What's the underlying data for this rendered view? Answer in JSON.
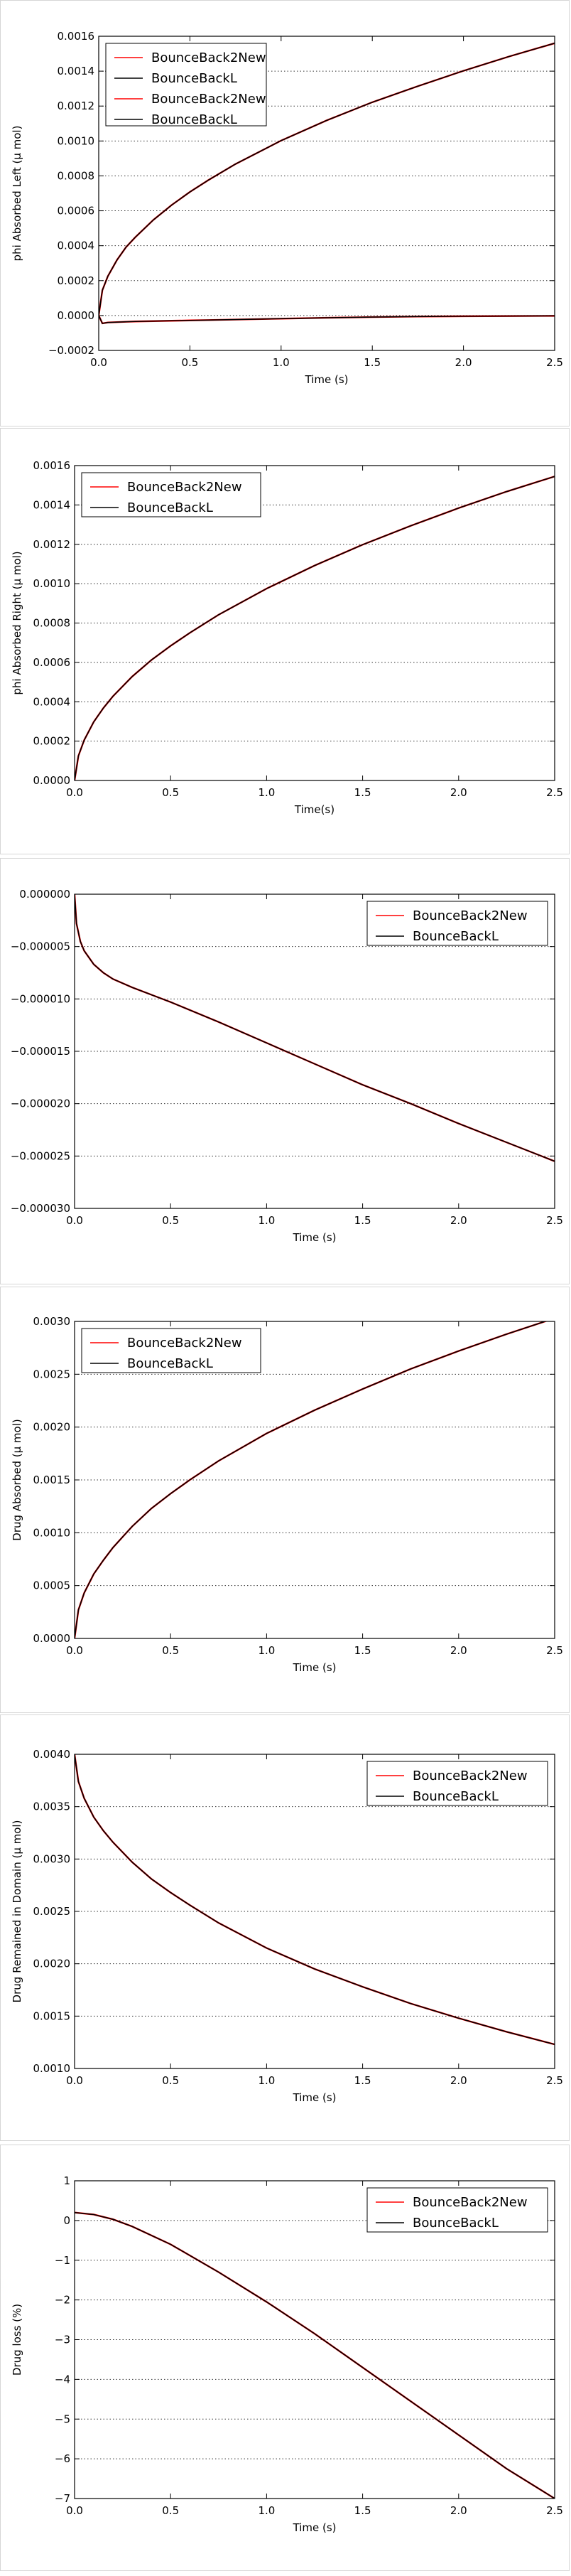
{
  "colors": {
    "new_series": "#ff0000",
    "ref_series": "#000000",
    "grid": "#000000",
    "frame": "#000000"
  },
  "chart_data": [
    {
      "type": "line",
      "ylabel": "phi Absorbed Left (μ mol)",
      "xlabel": "Time (s)",
      "xlim": [
        0,
        2.5
      ],
      "ylim": [
        -0.0002,
        0.0016
      ],
      "xticks": [
        "0.0",
        "0.5",
        "1.0",
        "1.5",
        "2.0",
        "2.5"
      ],
      "yticks": [
        "−0.0002",
        "0.0000",
        "0.0002",
        "0.0004",
        "0.0006",
        "0.0008",
        "0.0010",
        "0.0012",
        "0.0014",
        "0.0016"
      ],
      "grid": "y-dotted",
      "legend_position": "upper-left",
      "x": [
        0,
        0.02,
        0.05,
        0.1,
        0.15,
        0.2,
        0.3,
        0.4,
        0.5,
        0.6,
        0.75,
        1.0,
        1.25,
        1.5,
        1.75,
        2.0,
        2.25,
        2.5
      ],
      "series": [
        {
          "name": "BounceBack2New",
          "values": [
            0,
            0.000145,
            0.000225,
            0.000318,
            0.000392,
            0.000448,
            0.000548,
            0.000633,
            0.000708,
            0.000775,
            0.000868,
            0.001002,
            0.001118,
            0.001222,
            0.001314,
            0.001402,
            0.001484,
            0.00156
          ]
        },
        {
          "name": "BounceBackL",
          "values": [
            0,
            0.000145,
            0.000225,
            0.000318,
            0.000392,
            0.000448,
            0.000548,
            0.000633,
            0.000708,
            0.000775,
            0.000868,
            0.001002,
            0.001118,
            0.001222,
            0.001314,
            0.001402,
            0.001484,
            0.00156
          ]
        },
        {
          "name": "BounceBack2New",
          "values": [
            0,
            -4.5e-05,
            -4e-05,
            -3.8e-05,
            -3.6e-05,
            -3.4e-05,
            -3.2e-05,
            -3e-05,
            -2.8e-05,
            -2.6e-05,
            -2.3e-05,
            -1.8e-05,
            -1.3e-05,
            -9e-06,
            -6e-06,
            -4e-06,
            -3e-06,
            -2e-06
          ]
        },
        {
          "name": "BounceBackL",
          "values": [
            0,
            -4.5e-05,
            -4e-05,
            -3.8e-05,
            -3.6e-05,
            -3.4e-05,
            -3.2e-05,
            -3e-05,
            -2.8e-05,
            -2.6e-05,
            -2.3e-05,
            -1.8e-05,
            -1.3e-05,
            -9e-06,
            -6e-06,
            -4e-06,
            -3e-06,
            -2e-06
          ]
        }
      ]
    },
    {
      "type": "line",
      "ylabel": "phi Absorbed Right (μ mol)",
      "xlabel": "Time(s)",
      "xlim": [
        0,
        2.5
      ],
      "ylim": [
        0,
        0.0016
      ],
      "xticks": [
        "0.0",
        "0.5",
        "1.0",
        "1.5",
        "2.0",
        "2.5"
      ],
      "yticks": [
        "0.0000",
        "0.0002",
        "0.0004",
        "0.0006",
        "0.0008",
        "0.0010",
        "0.0012",
        "0.0014",
        "0.0016"
      ],
      "grid": "y-dotted",
      "legend_position": "upper-left",
      "x": [
        0,
        0.02,
        0.05,
        0.1,
        0.15,
        0.2,
        0.3,
        0.4,
        0.5,
        0.6,
        0.75,
        1.0,
        1.25,
        1.5,
        1.75,
        2.0,
        2.25,
        2.5
      ],
      "series": [
        {
          "name": "BounceBack2New",
          "values": [
            0,
            0.000125,
            0.000205,
            0.000298,
            0.000368,
            0.000428,
            0.000528,
            0.000612,
            0.000684,
            0.00075,
            0.000842,
            0.000975,
            0.001092,
            0.001198,
            0.001294,
            0.001384,
            0.001468,
            0.001545
          ]
        },
        {
          "name": "BounceBackL",
          "values": [
            0,
            0.000125,
            0.000205,
            0.000298,
            0.000368,
            0.000428,
            0.000528,
            0.000612,
            0.000684,
            0.00075,
            0.000842,
            0.000975,
            0.001092,
            0.001198,
            0.001294,
            0.001384,
            0.001468,
            0.001545
          ]
        }
      ]
    },
    {
      "type": "line",
      "ylabel": "",
      "xlabel": "Time (s)",
      "xlim": [
        0,
        2.5
      ],
      "ylim": [
        -3e-05,
        0
      ],
      "xticks": [
        "0.0",
        "0.5",
        "1.0",
        "1.5",
        "2.0",
        "2.5"
      ],
      "yticks": [
        "−0.000030",
        "−0.000025",
        "−0.000020",
        "−0.000015",
        "−0.000010",
        "−0.000005",
        "0.000000"
      ],
      "grid": "y-dotted",
      "legend_position": "upper-right",
      "x": [
        0,
        0.01,
        0.03,
        0.05,
        0.1,
        0.15,
        0.2,
        0.3,
        0.4,
        0.5,
        0.75,
        1.0,
        1.25,
        1.5,
        1.75,
        2.0,
        2.25,
        2.5
      ],
      "series": [
        {
          "name": "BounceBack2New",
          "values": [
            0,
            -2.8e-06,
            -4.5e-06,
            -5.4e-06,
            -6.7e-06,
            -7.5e-06,
            -8.1e-06,
            -8.9e-06,
            -9.6e-06,
            -1.03e-05,
            -1.22e-05,
            -1.42e-05,
            -1.62e-05,
            -1.82e-05,
            -2e-05,
            -2.19e-05,
            -2.37e-05,
            -2.55e-05
          ]
        },
        {
          "name": "BounceBackL",
          "values": [
            0,
            -2.8e-06,
            -4.5e-06,
            -5.4e-06,
            -6.7e-06,
            -7.5e-06,
            -8.1e-06,
            -8.9e-06,
            -9.6e-06,
            -1.03e-05,
            -1.22e-05,
            -1.42e-05,
            -1.62e-05,
            -1.82e-05,
            -2e-05,
            -2.19e-05,
            -2.37e-05,
            -2.55e-05
          ]
        }
      ]
    },
    {
      "type": "line",
      "ylabel": "Drug Absorbed (μ mol)",
      "xlabel": "Time (s)",
      "xlim": [
        0,
        2.5
      ],
      "ylim": [
        0,
        0.003
      ],
      "xticks": [
        "0.0",
        "0.5",
        "1.0",
        "1.5",
        "2.0",
        "2.5"
      ],
      "yticks": [
        "0.0000",
        "0.0005",
        "0.0010",
        "0.0015",
        "0.0020",
        "0.0025",
        "0.0030"
      ],
      "grid": "y-dotted",
      "legend_position": "upper-left",
      "x": [
        0,
        0.02,
        0.05,
        0.1,
        0.15,
        0.2,
        0.3,
        0.4,
        0.5,
        0.6,
        0.75,
        1.0,
        1.25,
        1.5,
        1.75,
        2.0,
        2.25,
        2.5
      ],
      "series": [
        {
          "name": "BounceBack2New",
          "values": [
            0,
            0.00027,
            0.00043,
            0.00061,
            0.00074,
            0.00086,
            0.00106,
            0.00123,
            0.00137,
            0.0015,
            0.00168,
            0.00194,
            0.00216,
            0.00236,
            0.00255,
            0.00272,
            0.00288,
            0.00303
          ]
        },
        {
          "name": "BounceBackL",
          "values": [
            0,
            0.00027,
            0.00043,
            0.00061,
            0.00074,
            0.00086,
            0.00106,
            0.00123,
            0.00137,
            0.0015,
            0.00168,
            0.00194,
            0.00216,
            0.00236,
            0.00255,
            0.00272,
            0.00288,
            0.00303
          ]
        }
      ]
    },
    {
      "type": "line",
      "ylabel": "Drug Remained in Domain (μ mol)",
      "xlabel": "Time (s)",
      "xlim": [
        0,
        2.5
      ],
      "ylim": [
        0.001,
        0.004
      ],
      "xticks": [
        "0.0",
        "0.5",
        "1.0",
        "1.5",
        "2.0",
        "2.5"
      ],
      "yticks": [
        "0.0010",
        "0.0015",
        "0.0020",
        "0.0025",
        "0.0030",
        "0.0035",
        "0.0040"
      ],
      "grid": "y-dotted",
      "legend_position": "upper-right",
      "x": [
        0,
        0.02,
        0.05,
        0.1,
        0.15,
        0.2,
        0.3,
        0.4,
        0.5,
        0.6,
        0.75,
        1.0,
        1.25,
        1.5,
        1.75,
        2.0,
        2.25,
        2.5
      ],
      "series": [
        {
          "name": "BounceBack2New",
          "values": [
            0.004,
            0.00374,
            0.00358,
            0.0034,
            0.00327,
            0.00316,
            0.00297,
            0.00281,
            0.00268,
            0.00256,
            0.00239,
            0.00215,
            0.00195,
            0.00178,
            0.00162,
            0.00148,
            0.00135,
            0.00123
          ]
        },
        {
          "name": "BounceBackL",
          "values": [
            0.004,
            0.00374,
            0.00358,
            0.0034,
            0.00327,
            0.00316,
            0.00297,
            0.00281,
            0.00268,
            0.00256,
            0.00239,
            0.00215,
            0.00195,
            0.00178,
            0.00162,
            0.00148,
            0.00135,
            0.00123
          ]
        }
      ]
    },
    {
      "type": "line",
      "ylabel": "Drug loss (%)",
      "xlabel": "Time (s)",
      "xlim": [
        0,
        2.5
      ],
      "ylim": [
        -7,
        1
      ],
      "xticks": [
        "0.0",
        "0.5",
        "1.0",
        "1.5",
        "2.0",
        "2.5"
      ],
      "yticks": [
        "−7",
        "−6",
        "−5",
        "−4",
        "−3",
        "−2",
        "−1",
        "0",
        "1"
      ],
      "grid": "y-dotted",
      "legend_position": "upper-right",
      "x": [
        0,
        0.1,
        0.2,
        0.3,
        0.5,
        0.75,
        1.0,
        1.25,
        1.5,
        1.75,
        2.0,
        2.25,
        2.5
      ],
      "series": [
        {
          "name": "BounceBack2New",
          "values": [
            0.2,
            0.15,
            0.03,
            -0.15,
            -0.6,
            -1.3,
            -2.05,
            -2.85,
            -3.7,
            -4.55,
            -5.4,
            -6.25,
            -7.0
          ]
        },
        {
          "name": "BounceBackL",
          "values": [
            0.2,
            0.15,
            0.03,
            -0.15,
            -0.6,
            -1.3,
            -2.05,
            -2.85,
            -3.7,
            -4.55,
            -5.4,
            -6.25,
            -7.0
          ]
        }
      ]
    }
  ]
}
